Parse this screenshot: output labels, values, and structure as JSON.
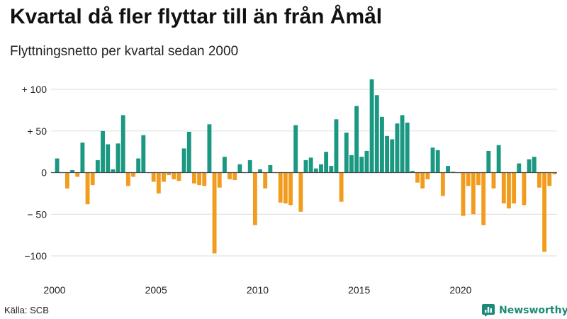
{
  "header": {
    "title": "Kvartal då fler flyttar till än från Åmål",
    "subtitle": "Flyttningsnetto per kvartal sedan 2000"
  },
  "footer": {
    "source": "Källa: SCB",
    "brand": "Newsworthy"
  },
  "colors": {
    "positive": "#1a9882",
    "negative": "#f29c1e",
    "grid": "#dddddd",
    "baseline": "#444444",
    "brand": "#1b8a78"
  },
  "icons": {
    "brand_logo": "bar-chart-badge-icon"
  },
  "chart_data": {
    "type": "bar",
    "title": "Kvartal då fler flyttar till än från Åmål",
    "subtitle": "Flyttningsnetto per kvartal sedan 2000",
    "xlabel": "",
    "ylabel": "",
    "ylim": [
      -110,
      115
    ],
    "grid": true,
    "legend": "none",
    "start_year": 2000,
    "quarters_per_year": 4,
    "x_ticks": [
      {
        "year": 2000,
        "label": "2000"
      },
      {
        "year": 2005,
        "label": "2005"
      },
      {
        "year": 2010,
        "label": "2010"
      },
      {
        "year": 2015,
        "label": "2015"
      },
      {
        "year": 2020,
        "label": "2020"
      }
    ],
    "y_ticks": [
      {
        "value": 100,
        "label": "+ 100"
      },
      {
        "value": 50,
        "label": "+  50"
      },
      {
        "value": 0,
        "label": "0"
      },
      {
        "value": -50,
        "label": "− 50"
      },
      {
        "value": -100,
        "label": "−100"
      }
    ],
    "values": [
      17,
      0,
      -19,
      3,
      -5,
      36,
      -38,
      -15,
      15,
      50,
      34,
      4,
      35,
      69,
      -16,
      -5,
      17,
      45,
      0,
      -11,
      -25,
      -11,
      -3,
      -8,
      -10,
      29,
      49,
      -13,
      -15,
      -16,
      58,
      -97,
      -18,
      19,
      -8,
      -9,
      10,
      0,
      15,
      -63,
      4,
      -19,
      9,
      0,
      -36,
      -37,
      -39,
      57,
      -47,
      15,
      18,
      5,
      10,
      25,
      8,
      64,
      -35,
      48,
      21,
      80,
      19,
      26,
      112,
      93,
      67,
      44,
      40,
      59,
      69,
      60,
      2,
      -12,
      -19,
      -8,
      30,
      27,
      -28,
      8,
      1,
      0,
      -52,
      -16,
      -50,
      -15,
      -63,
      26,
      -19,
      33,
      -37,
      -43,
      -37,
      11,
      -39,
      16,
      19,
      -18,
      -95,
      -16,
      -2
    ]
  }
}
